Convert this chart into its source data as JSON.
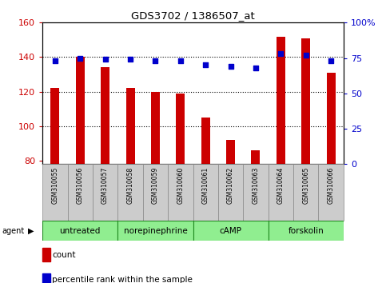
{
  "title": "GDS3702 / 1386507_at",
  "samples": [
    "GSM310055",
    "GSM310056",
    "GSM310057",
    "GSM310058",
    "GSM310059",
    "GSM310060",
    "GSM310061",
    "GSM310062",
    "GSM310063",
    "GSM310064",
    "GSM310065",
    "GSM310066"
  ],
  "counts": [
    122,
    140,
    134,
    122,
    120,
    119,
    105,
    92,
    86,
    152,
    151,
    131
  ],
  "percentile_ranks": [
    73,
    75,
    74,
    74,
    73,
    73,
    70,
    69,
    68,
    78,
    77,
    73
  ],
  "bar_color": "#cc0000",
  "dot_color": "#0000cc",
  "ylim_left": [
    78,
    160
  ],
  "ylim_right": [
    0,
    100
  ],
  "yticks_left": [
    80,
    100,
    120,
    140,
    160
  ],
  "yticks_right": [
    0,
    25,
    50,
    75,
    100
  ],
  "yticklabels_right": [
    "0",
    "25",
    "50",
    "75",
    "100%"
  ],
  "agents": [
    {
      "label": "untreated",
      "start": 0,
      "end": 3
    },
    {
      "label": "norepinephrine",
      "start": 3,
      "end": 6
    },
    {
      "label": "cAMP",
      "start": 6,
      "end": 9
    },
    {
      "label": "forskolin",
      "start": 9,
      "end": 12
    }
  ],
  "agent_color": "#90EE90",
  "agent_border_color": "#228B22",
  "sample_bg_color": "#cccccc",
  "sample_border_color": "#888888",
  "grid_color": "black",
  "left_label_color": "#cc0000",
  "right_label_color": "#0000cc",
  "bar_width": 0.35
}
